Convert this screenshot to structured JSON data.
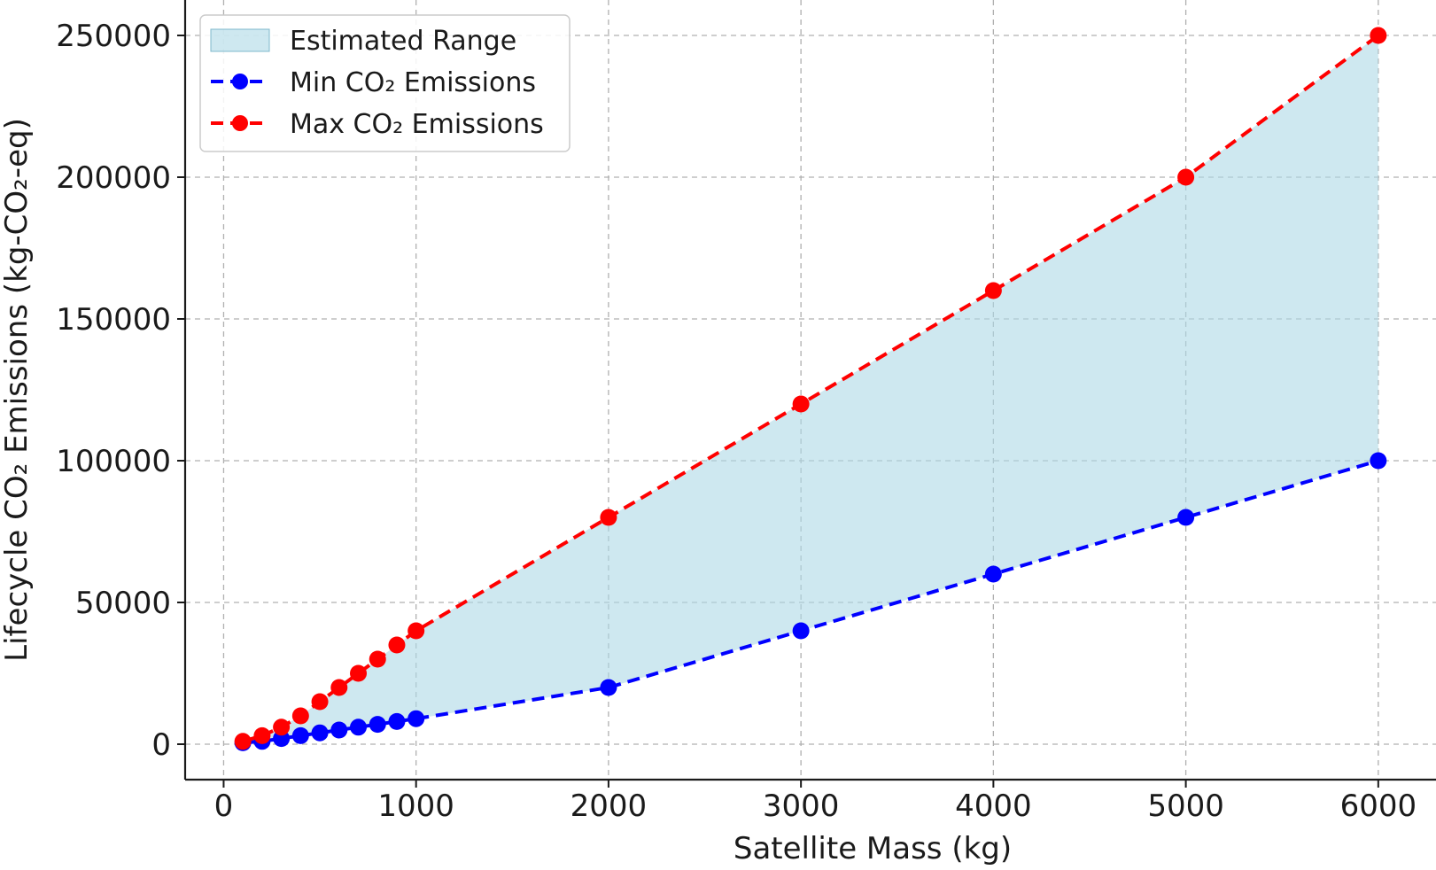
{
  "chart_data": {
    "type": "line",
    "title": "",
    "xlabel": "Satellite Mass (kg)",
    "ylabel": "Lifecycle CO₂ Emissions (kg-CO₂-eq)",
    "xlim": [
      -200,
      6300
    ],
    "ylim": [
      -12500,
      262500
    ],
    "x_ticks": [
      0,
      1000,
      2000,
      3000,
      4000,
      5000,
      6000
    ],
    "y_ticks": [
      0,
      50000,
      100000,
      150000,
      200000,
      250000
    ],
    "grid": true,
    "legend_position": "top-left",
    "x": [
      100,
      200,
      300,
      400,
      500,
      600,
      700,
      800,
      900,
      1000,
      2000,
      3000,
      4000,
      5000,
      6000
    ],
    "fill": {
      "name": "Estimated Range",
      "color": "#add8e6",
      "between": [
        "Min CO₂ Emissions",
        "Max CO₂ Emissions"
      ]
    },
    "series": [
      {
        "name": "Min CO₂ Emissions",
        "color": "#0000ff",
        "values": [
          500,
          1000,
          2000,
          3000,
          4000,
          5000,
          6000,
          7000,
          8000,
          9000,
          20000,
          40000,
          60000,
          80000,
          100000
        ]
      },
      {
        "name": "Max CO₂ Emissions",
        "color": "#ff0000",
        "values": [
          1000,
          3000,
          6000,
          10000,
          15000,
          20000,
          25000,
          30000,
          35000,
          40000,
          80000,
          120000,
          160000,
          200000,
          250000
        ]
      }
    ]
  }
}
